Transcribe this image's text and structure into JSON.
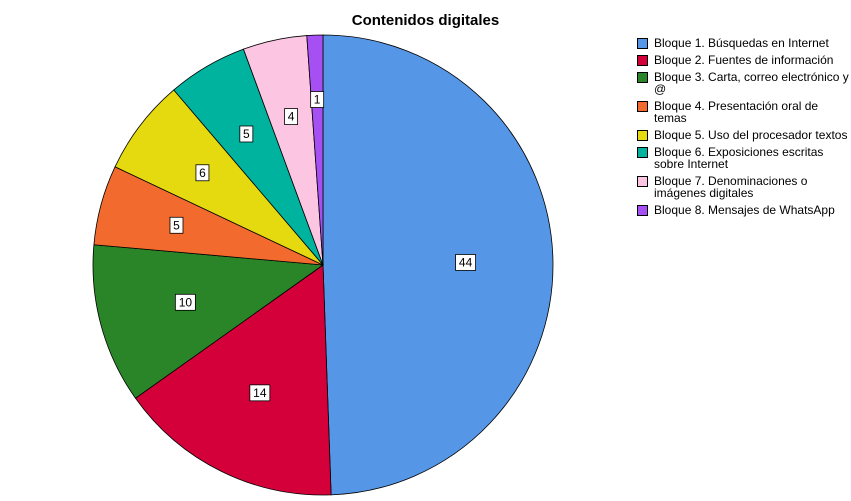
{
  "chart_data": {
    "type": "pie",
    "title": "Contenidos digitales",
    "legend_position": "right",
    "slices": [
      {
        "label": "Bloque 1. Búsquedas en Internet",
        "value": 44,
        "color": "#5596E6"
      },
      {
        "label": "Bloque 2. Fuentes de información",
        "value": 14,
        "color": "#D4003A"
      },
      {
        "label": "Bloque 3. Carta, correo electrónico y @",
        "value": 10,
        "color": "#2A8528"
      },
      {
        "label": "Bloque 4. Presentación oral de temas",
        "value": 5,
        "color": "#F26A2E"
      },
      {
        "label": "Bloque 5. Uso del procesador textos",
        "value": 6,
        "color": "#E5DA10"
      },
      {
        "label": "Bloque 6. Exposiciones escritas sobre Internet",
        "value": 5,
        "color": "#00B39E"
      },
      {
        "label": "Bloque 7. Denominaciones o imágenes digitales",
        "value": 4,
        "color": "#FCC6E2"
      },
      {
        "label": "Bloque 8. Mensajes de WhatsApp",
        "value": 1,
        "color": "#A64FF2"
      }
    ]
  }
}
